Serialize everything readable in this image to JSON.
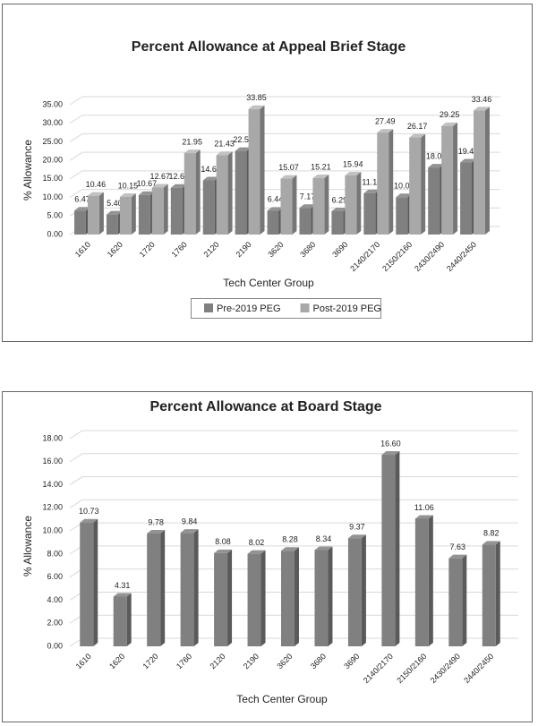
{
  "chart_data": [
    {
      "type": "bar",
      "title": "Percent Allowance at Appeal Brief Stage",
      "x_label": "Tech Center Group",
      "y_label": "% Allowance",
      "categories": [
        "1610",
        "1620",
        "1720",
        "1760",
        "2120",
        "2190",
        "3620",
        "3680",
        "3690",
        "2140/2170",
        "2150/2160",
        "2430/2490",
        "2440/2450"
      ],
      "series": [
        {
          "name": "Pre-2019 PEG",
          "color": "#808080",
          "values": [
            6.47,
            5.4,
            10.67,
            12.62,
            14.6,
            22.54,
            6.44,
            7.17,
            6.29,
            11.13,
            10.07,
            18.08,
            19.42
          ],
          "value_labels": [
            "6.47",
            "5.40",
            "10.67",
            "12.62",
            "14.60",
            "22.54",
            "6.44",
            "7.17",
            "6.29",
            "11.13",
            "10.07",
            "18.08",
            "19.42"
          ]
        },
        {
          "name": "Post-2019 PEG",
          "color": "#a8a8a8",
          "values": [
            10.46,
            10.15,
            12.67,
            21.95,
            21.43,
            33.85,
            15.07,
            15.21,
            15.94,
            27.49,
            26.17,
            29.25,
            33.46
          ],
          "value_labels": [
            "10.46",
            "10.15",
            "12.67",
            "21.95",
            "21.43",
            "33.85",
            "15.07",
            "15.21",
            "15.94",
            "27.49",
            "26.17",
            "29.25",
            "33.46"
          ]
        }
      ],
      "ylim": [
        0,
        35
      ],
      "yticks": [
        {
          "value": 0,
          "label": "0.00"
        },
        {
          "value": 5,
          "label": "5.00"
        },
        {
          "value": 10,
          "label": "10.00"
        },
        {
          "value": 15,
          "label": "15.00"
        },
        {
          "value": 20,
          "label": "20.00"
        },
        {
          "value": 25,
          "label": "25.00"
        },
        {
          "value": 30,
          "label": "30.00"
        },
        {
          "value": 35,
          "label": "35.00"
        }
      ],
      "grid": true,
      "legend": "bottom"
    },
    {
      "type": "bar",
      "title": "Percent Allowance at Board Stage",
      "x_label": "Tech Center Group",
      "y_label": "% Allowance",
      "categories": [
        "1610",
        "1620",
        "1720",
        "1760",
        "2120",
        "2190",
        "3620",
        "3680",
        "3690",
        "2140/2170",
        "2150/2160",
        "2430/2490",
        "2440/2450"
      ],
      "values": [
        10.73,
        4.31,
        9.78,
        9.84,
        8.08,
        8.02,
        8.28,
        8.34,
        9.37,
        16.6,
        11.06,
        7.63,
        8.82
      ],
      "value_labels": [
        "10.73",
        "4.31",
        "9.78",
        "9.84",
        "8.08",
        "8.02",
        "8.28",
        "8.34",
        "9.37",
        "16.60",
        "11.06",
        "7.63",
        "8.82"
      ],
      "color": "#808080",
      "ylim": [
        0,
        18
      ],
      "yticks": [
        {
          "value": 0,
          "label": "0.00"
        },
        {
          "value": 2,
          "label": "2.00"
        },
        {
          "value": 4,
          "label": "4.00"
        },
        {
          "value": 6,
          "label": "6.00"
        },
        {
          "value": 8,
          "label": "8.00"
        },
        {
          "value": 10,
          "label": "10.00"
        },
        {
          "value": 12,
          "label": "12.00"
        },
        {
          "value": 14,
          "label": "14.00"
        },
        {
          "value": 16,
          "label": "16.00"
        },
        {
          "value": 18,
          "label": "18.00"
        }
      ],
      "grid": true
    }
  ]
}
